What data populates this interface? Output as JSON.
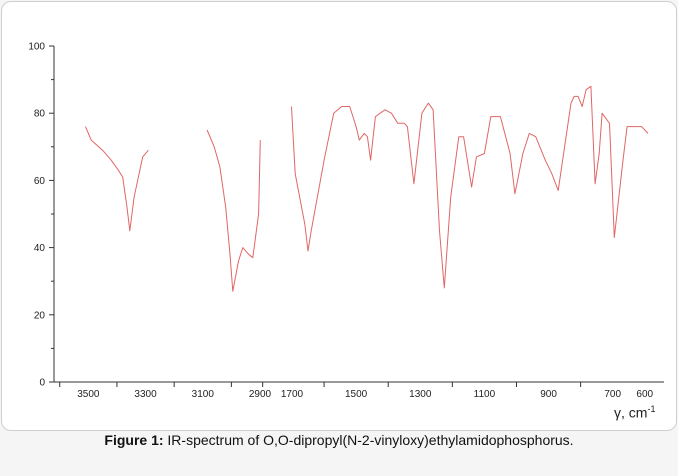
{
  "chart_data": {
    "type": "line",
    "title": "",
    "xlabel": "γ, cm",
    "xlabel_sup": "-1",
    "ylabel": "",
    "xlim": [
      3620,
      540
    ],
    "ylim": [
      0,
      100
    ],
    "x_ticks": [
      3500,
      3300,
      3100,
      2900,
      1700,
      1500,
      1300,
      1100,
      900,
      700,
      600
    ],
    "y_ticks": [
      0,
      20,
      40,
      60,
      80,
      100
    ],
    "line_color": "#e06666",
    "grid": false,
    "axis_break": "between 2900 and 1700",
    "segments": [
      {
        "x": [
          3510,
          3490,
          3450,
          3420,
          3395,
          3380,
          3365,
          3355,
          3340,
          3310,
          3290
        ],
        "y": [
          76,
          72,
          69,
          66,
          63,
          61,
          52,
          45,
          55,
          67,
          69
        ]
      },
      {
        "x": [
          3085,
          3060,
          3040,
          3020,
          3005,
          2995,
          2975,
          2960,
          2940,
          2925,
          2905,
          2890
        ],
        "y": [
          75,
          70,
          64,
          52,
          38,
          27,
          36,
          40,
          38,
          37,
          50,
          72
        ]
      },
      {
        "x": [
          1720,
          1690,
          1660,
          1650,
          1640,
          1600,
          1570,
          1545,
          1520,
          1500,
          1490,
          1475,
          1465,
          1455,
          1440,
          1410,
          1390,
          1370,
          1350,
          1340,
          1320,
          1295,
          1275,
          1260,
          1240,
          1225,
          1205,
          1180,
          1165,
          1140,
          1125,
          1100,
          1080,
          1050,
          1020,
          1005,
          980,
          960,
          940,
          910,
          890,
          870,
          850,
          830,
          820,
          808,
          795,
          783,
          768,
          755,
          742,
          733,
          710,
          695,
          668,
          655,
          630,
          610,
          590
        ],
        "y": [
          82,
          62,
          47,
          39,
          45,
          66,
          80,
          82,
          82,
          76,
          72,
          74,
          73,
          66,
          79,
          81,
          80,
          77,
          77,
          76,
          59,
          80,
          83,
          81,
          45,
          28,
          55,
          73,
          73,
          58,
          67,
          68,
          79,
          79,
          68,
          56,
          68,
          74,
          73,
          66,
          62,
          57,
          70,
          83,
          85,
          85,
          82,
          87,
          88,
          59,
          68,
          80,
          77,
          43,
          66,
          76,
          76,
          76,
          74
        ]
      }
    ]
  },
  "caption": {
    "label": "Figure 1:",
    "text": " IR-spectrum of O,O-dipropyl(N-2-vinyloxy)ethylamidophosphorus."
  }
}
